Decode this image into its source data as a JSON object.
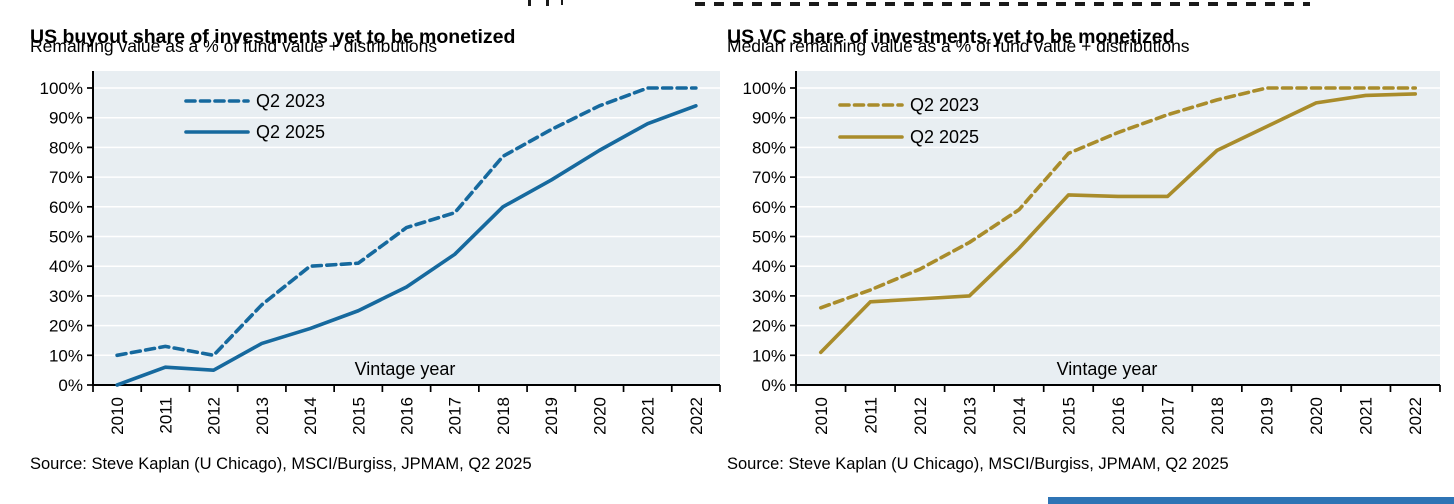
{
  "chart_data": [
    {
      "id": "us-buyout",
      "type": "line",
      "title": "US buyout share of investments yet to be monetized",
      "subtitle": "Remaining value as a % of fund value + distributions",
      "source": "Source: Steve Kaplan (U Chicago), MSCI/Burgiss, JPMAM, Q2 2025",
      "inner_axis_label": "Vintage year",
      "accent_color": "#16699E",
      "plot_bg_color": "#E8EEF2",
      "grid": "horizontal-white",
      "legend_position": "inside-top-left",
      "categories": [
        "2010",
        "2011",
        "2012",
        "2013",
        "2014",
        "2015",
        "2016",
        "2017",
        "2018",
        "2019",
        "2020",
        "2021",
        "2022"
      ],
      "ylim": [
        0,
        100
      ],
      "ytick_step": 10,
      "ytick_suffix": "%",
      "series": [
        {
          "name": "Q2 2023",
          "line_style": "dashed",
          "values": [
            10,
            13,
            10,
            27,
            40,
            41,
            53,
            58,
            77,
            86,
            94,
            100,
            100
          ]
        },
        {
          "name": "Q2 2025",
          "line_style": "solid",
          "values": [
            0,
            6,
            5,
            14,
            19,
            25,
            33,
            44,
            60,
            69,
            79,
            88,
            94
          ]
        }
      ]
    },
    {
      "id": "us-vc",
      "type": "line",
      "title": "US VC share of investments yet to be monetized",
      "subtitle": "Median remaining value as a % of fund value + distributions",
      "source": "Source: Steve Kaplan (U Chicago), MSCI/Burgiss, JPMAM, Q2 2025",
      "inner_axis_label": "Vintage year",
      "accent_color": "#A98C2B",
      "plot_bg_color": "#E8EEF2",
      "grid": "horizontal-white",
      "legend_position": "inside-top-left",
      "categories": [
        "2010",
        "2011",
        "2012",
        "2013",
        "2014",
        "2015",
        "2016",
        "2017",
        "2018",
        "2019",
        "2020",
        "2021",
        "2022"
      ],
      "ylim": [
        0,
        100
      ],
      "ytick_step": 10,
      "ytick_suffix": "%",
      "series": [
        {
          "name": "Q2 2023",
          "line_style": "dashed",
          "values": [
            26,
            32,
            39,
            48,
            59,
            78,
            85,
            91,
            96,
            100,
            100,
            100,
            100
          ]
        },
        {
          "name": "Q2 2025",
          "line_style": "solid",
          "values": [
            11,
            28,
            29,
            30,
            46,
            64,
            63.5,
            63.5,
            79,
            87,
            95,
            97.5,
            98
          ]
        }
      ]
    }
  ],
  "footer": {
    "accent_bar_color": "#2E74B5"
  }
}
